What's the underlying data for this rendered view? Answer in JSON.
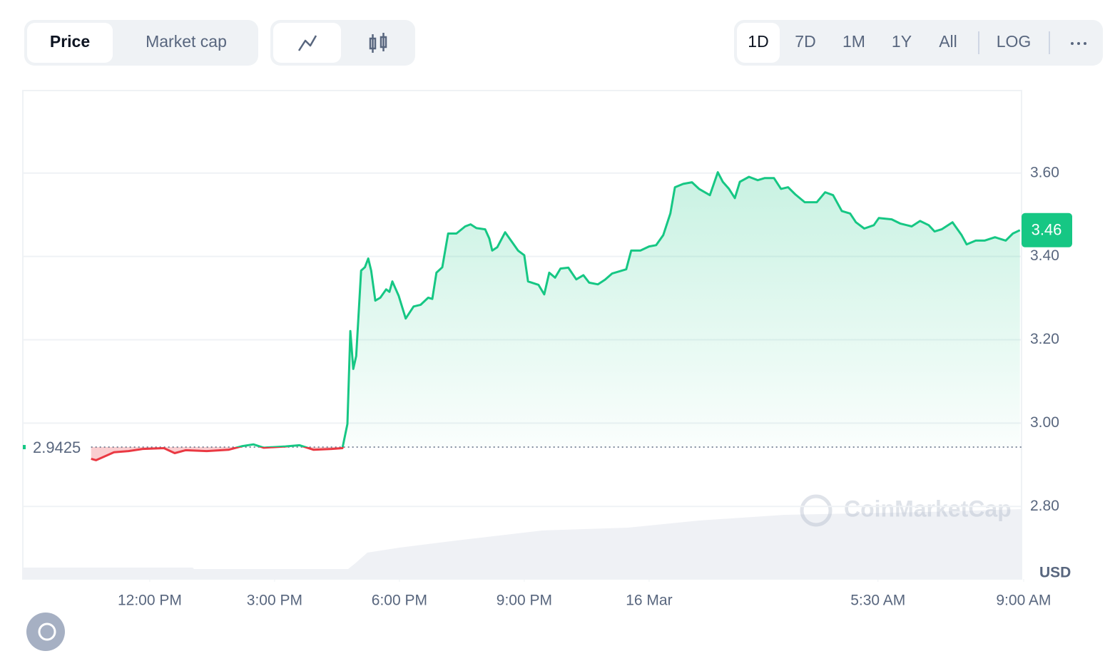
{
  "toolbar": {
    "views": [
      "Price",
      "Market cap"
    ],
    "ranges": [
      "1D",
      "7D",
      "1M",
      "1Y",
      "All"
    ],
    "scale": "LOG"
  },
  "chart_data": {
    "type": "line",
    "currency": "USD",
    "watermark": "CoinMarketCap",
    "reference": 2.9425,
    "price_tag": "3.46",
    "colors": {
      "up": "#16c784",
      "down": "#ea3943"
    },
    "xlim": [
      8.95,
      32.95
    ],
    "xticks": [
      {
        "value": 12,
        "label": "12:00 PM"
      },
      {
        "value": 15,
        "label": "3:00 PM"
      },
      {
        "value": 18,
        "label": "6:00 PM"
      },
      {
        "value": 21,
        "label": "9:00 PM"
      },
      {
        "value": 24,
        "label": "16 Mar"
      },
      {
        "value": 29.5,
        "label": "5:30 AM"
      },
      {
        "value": 33,
        "label": "9:00 AM"
      }
    ],
    "ylim": [
      2.626,
      3.798
    ],
    "yticks": [
      {
        "value": 2.8,
        "label": "2.80"
      },
      {
        "value": 3.0,
        "label": "3.00"
      },
      {
        "value": 3.2,
        "label": "3.20"
      },
      {
        "value": 3.4,
        "label": "3.40"
      },
      {
        "value": 3.6,
        "label": "3.60"
      }
    ],
    "grid": true,
    "series": [
      {
        "name": "Price",
        "x": [
          10.59,
          10.71,
          11.14,
          11.49,
          11.83,
          12.34,
          12.6,
          12.86,
          13.37,
          13.89,
          14.23,
          14.49,
          14.74,
          15.26,
          15.6,
          15.94,
          16.37,
          16.63,
          16.75,
          16.82,
          16.89,
          16.96,
          17.08,
          17.17,
          17.25,
          17.32,
          17.42,
          17.54,
          17.68,
          17.76,
          17.83,
          17.98,
          18.15,
          18.34,
          18.51,
          18.69,
          18.79,
          18.89,
          19.03,
          19.17,
          19.37,
          19.58,
          19.71,
          19.85,
          20.06,
          20.16,
          20.23,
          20.35,
          20.54,
          20.71,
          20.85,
          21.0,
          21.09,
          21.34,
          21.48,
          21.6,
          21.74,
          21.87,
          22.06,
          22.25,
          22.42,
          22.56,
          22.77,
          22.94,
          23.11,
          23.45,
          23.57,
          23.79,
          24.0,
          24.17,
          24.34,
          24.51,
          24.62,
          24.82,
          25.03,
          25.2,
          25.46,
          25.65,
          25.77,
          25.92,
          26.06,
          26.18,
          26.4,
          26.61,
          26.78,
          27.0,
          27.17,
          27.34,
          27.51,
          27.74,
          28.03,
          28.23,
          28.42,
          28.63,
          28.83,
          28.97,
          29.17,
          29.4,
          29.52,
          29.83,
          30.03,
          30.31,
          30.51,
          30.72,
          30.86,
          31.03,
          31.29,
          31.51,
          31.63,
          31.85,
          32.06,
          32.31,
          32.57,
          32.74,
          32.91
        ],
        "values": [
          2.9145,
          2.911,
          2.93,
          2.933,
          2.938,
          2.94,
          2.928,
          2.935,
          2.933,
          2.936,
          2.945,
          2.949,
          2.941,
          2.944,
          2.947,
          2.936,
          2.938,
          2.94,
          2.998,
          3.221,
          3.13,
          3.161,
          3.366,
          3.374,
          3.395,
          3.366,
          3.294,
          3.301,
          3.321,
          3.315,
          3.34,
          3.306,
          3.251,
          3.28,
          3.284,
          3.301,
          3.298,
          3.361,
          3.374,
          3.455,
          3.455,
          3.472,
          3.477,
          3.468,
          3.465,
          3.443,
          3.414,
          3.422,
          3.458,
          3.434,
          3.414,
          3.403,
          3.34,
          3.332,
          3.309,
          3.361,
          3.349,
          3.371,
          3.373,
          3.345,
          3.355,
          3.337,
          3.333,
          3.344,
          3.359,
          3.369,
          3.414,
          3.414,
          3.424,
          3.427,
          3.451,
          3.503,
          3.566,
          3.574,
          3.578,
          3.562,
          3.547,
          3.602,
          3.579,
          3.562,
          3.54,
          3.579,
          3.591,
          3.583,
          3.588,
          3.588,
          3.562,
          3.566,
          3.549,
          3.53,
          3.53,
          3.554,
          3.547,
          3.509,
          3.503,
          3.482,
          3.467,
          3.475,
          3.492,
          3.489,
          3.479,
          3.472,
          3.485,
          3.475,
          3.46,
          3.465,
          3.482,
          3.451,
          3.429,
          3.438,
          3.438,
          3.446,
          3.438,
          3.455,
          3.463
        ]
      }
    ]
  }
}
